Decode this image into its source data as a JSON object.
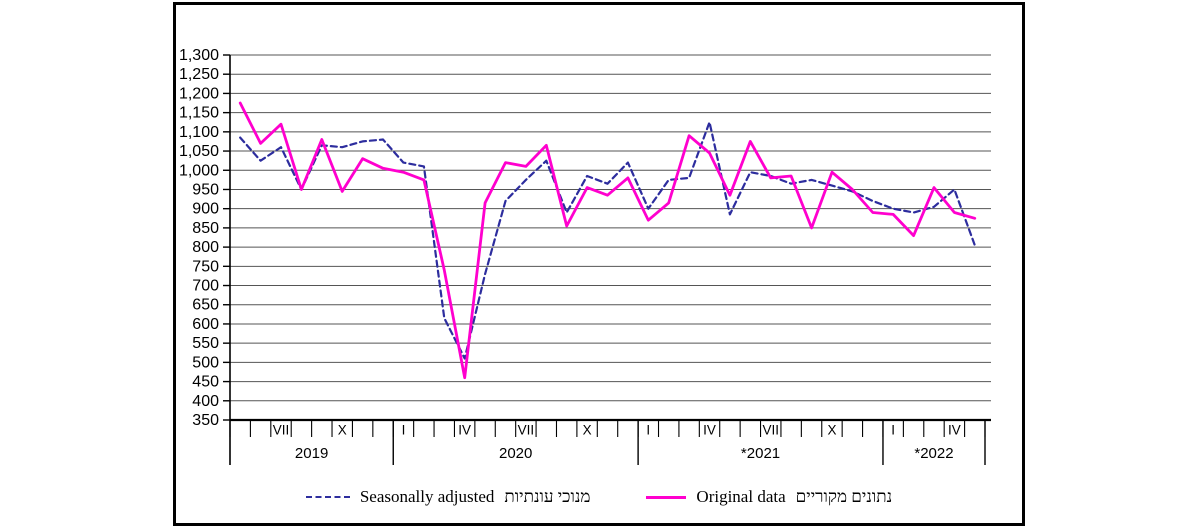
{
  "figure": {
    "border_color": "#000000",
    "background": "#ffffff"
  },
  "chart_data": {
    "type": "line",
    "title": "",
    "xlabel": "",
    "ylabel": "",
    "ylim": [
      350,
      1300
    ],
    "ytick_step": 50,
    "ytick_labels": [
      "350",
      "400",
      "450",
      "500",
      "550",
      "600",
      "650",
      "700",
      "750",
      "800",
      "850",
      "900",
      "950",
      "1,000",
      "1,050",
      "1,100",
      "1,150",
      "1,200",
      "1,250",
      "1,300"
    ],
    "grid": "horizontal",
    "gridline_color": "#555555",
    "axis_color": "#000000",
    "categories": [
      "2019-V",
      "2019-VI",
      "2019-VII",
      "2019-VIII",
      "2019-IX",
      "2019-X",
      "2019-XI",
      "2019-XII",
      "2020-I",
      "2020-II",
      "2020-III",
      "2020-IV",
      "2020-V",
      "2020-VI",
      "2020-VII",
      "2020-VIII",
      "2020-IX",
      "2020-X",
      "2020-XI",
      "2020-XII",
      "2021-I",
      "2021-II",
      "2021-III",
      "2021-IV",
      "2021-V",
      "2021-VI",
      "2021-VII",
      "2021-VIII",
      "2021-IX",
      "2021-X",
      "2021-XI",
      "2021-XII",
      "2022-I",
      "2022-II",
      "2022-III",
      "2022-IV",
      "2022-V"
    ],
    "month_tick_labels": [
      {
        "index": 2,
        "label": "VII"
      },
      {
        "index": 5,
        "label": "X"
      },
      {
        "index": 8,
        "label": "I"
      },
      {
        "index": 11,
        "label": "IV"
      },
      {
        "index": 14,
        "label": "VII"
      },
      {
        "index": 17,
        "label": "X"
      },
      {
        "index": 20,
        "label": "I"
      },
      {
        "index": 23,
        "label": "IV"
      },
      {
        "index": 26,
        "label": "VII"
      },
      {
        "index": 29,
        "label": "X"
      },
      {
        "index": 32,
        "label": "I"
      },
      {
        "index": 35,
        "label": "IV"
      }
    ],
    "year_groups": [
      {
        "label": "2019",
        "months": 8
      },
      {
        "label": "2020",
        "months": 12
      },
      {
        "label": "*2021",
        "months": 12
      },
      {
        "label": "*2022",
        "months": 5
      }
    ],
    "series": [
      {
        "name": "Seasonally adjusted",
        "name_he": "מנוכי עונתיות",
        "color": "#2d2d9e",
        "style": "dashed",
        "values": [
          1085,
          1025,
          1060,
          950,
          1065,
          1060,
          1075,
          1080,
          1020,
          1010,
          615,
          510,
          730,
          920,
          975,
          1025,
          890,
          985,
          965,
          1020,
          900,
          975,
          980,
          1125,
          885,
          995,
          985,
          965,
          975,
          960,
          945,
          920,
          900,
          890,
          905,
          950,
          805
        ]
      },
      {
        "name": "Original data",
        "name_he": "נתונים מקוריים",
        "color": "#ff00ce",
        "style": "solid",
        "values": [
          1175,
          1070,
          1120,
          950,
          1080,
          945,
          1030,
          1005,
          995,
          975,
          740,
          460,
          915,
          1020,
          1010,
          1065,
          855,
          955,
          935,
          980,
          870,
          915,
          1090,
          1045,
          935,
          1075,
          980,
          985,
          850,
          995,
          950,
          890,
          885,
          830,
          955,
          890,
          875
        ]
      }
    ],
    "legend_position": "bottom"
  },
  "legend": {
    "seasonally_adjusted_en": "Seasonally adjusted",
    "seasonally_adjusted_he": "מנוכי עונתיות",
    "original_en": "Original data",
    "original_he": "נתונים מקוריים"
  }
}
